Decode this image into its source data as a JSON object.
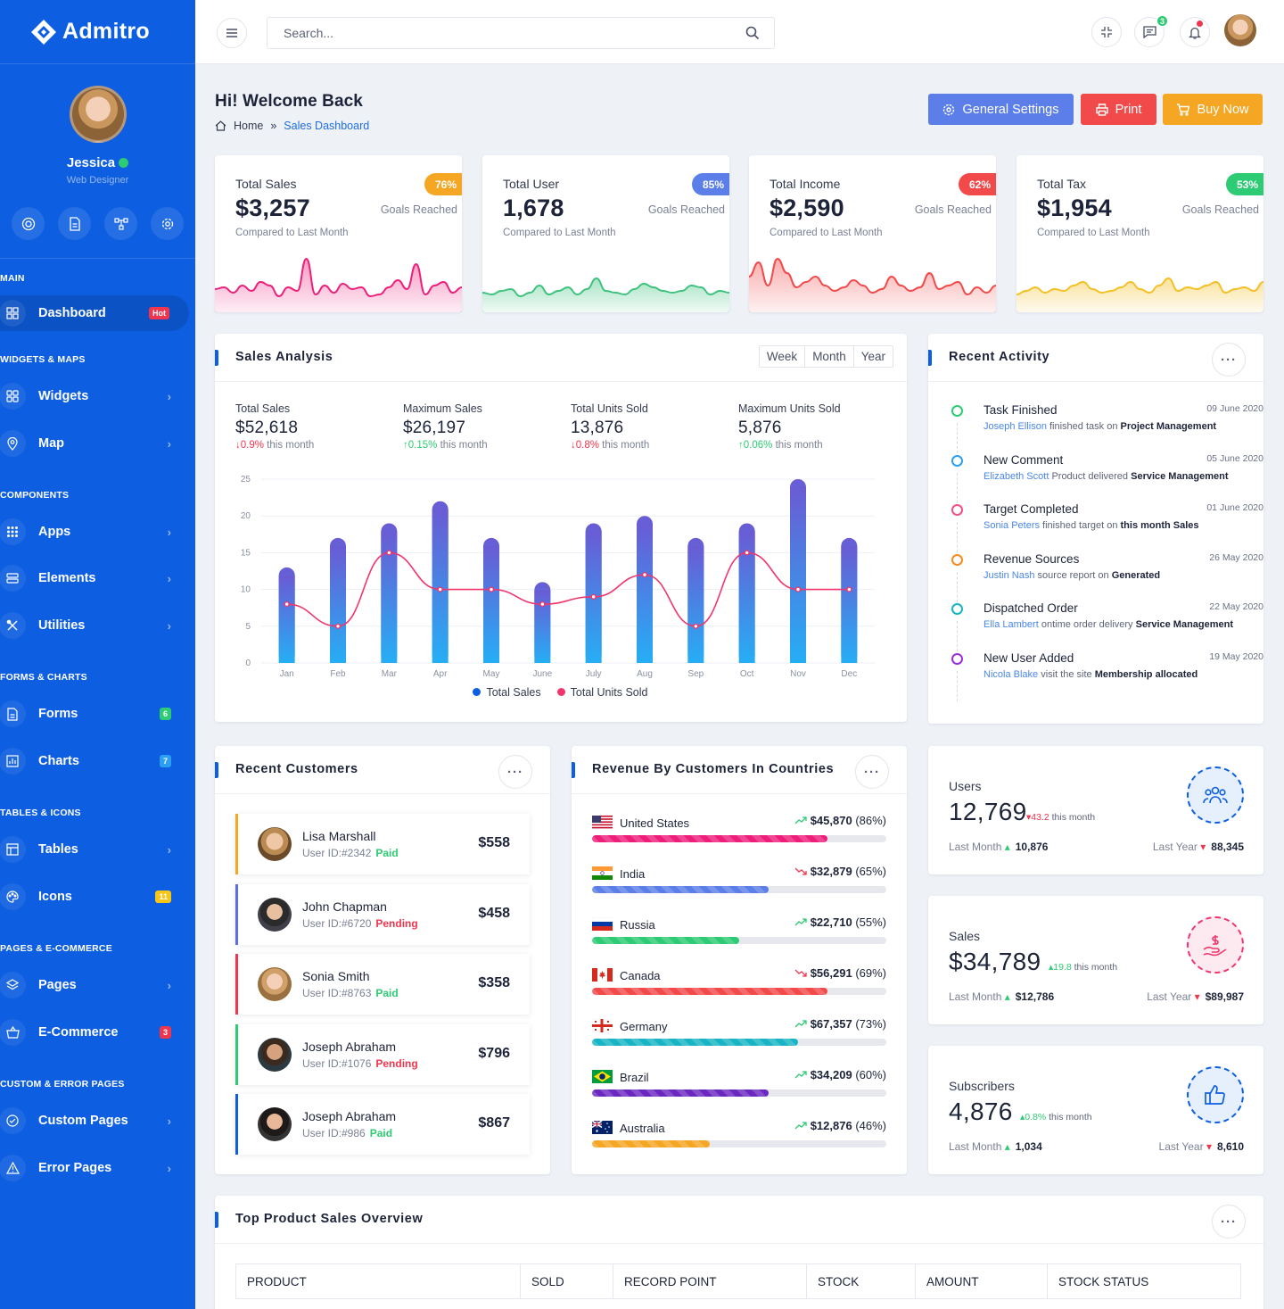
{
  "app": {
    "name": "Admitro"
  },
  "profile": {
    "name": "Jessica",
    "role": "Web Designer"
  },
  "nav": {
    "sec_main": "MAIN",
    "dashboard": "Dashboard",
    "dashboard_badge": "Hot",
    "sec_widgets": "WIDGETS & MAPS",
    "widgets": "Widgets",
    "map": "Map",
    "sec_components": "COMPONENTS",
    "apps": "Apps",
    "elements": "Elements",
    "utilities": "Utilities",
    "sec_forms": "FORMS & CHARTS",
    "forms": "Forms",
    "forms_badge": "6",
    "charts": "Charts",
    "charts_badge": "7",
    "sec_tables": "TABLES & ICONS",
    "tables": "Tables",
    "icons": "Icons",
    "icons_badge": "11",
    "sec_pages": "PAGES & E-COMMERCE",
    "pages": "Pages",
    "ecommerce": "E-Commerce",
    "ecommerce_badge": "3",
    "sec_custom": "CUSTOM & ERROR PAGES",
    "custom": "Custom Pages",
    "error": "Error Pages"
  },
  "topbar": {
    "search_placeholder": "Search...",
    "messages_count": "3"
  },
  "header": {
    "title": "Hi! Welcome Back",
    "crumb_home": "Home",
    "crumb_sep": "»",
    "crumb_current": "Sales Dashboard",
    "btn_settings": "General Settings",
    "btn_print": "Print",
    "btn_buy": "Buy Now"
  },
  "stats": [
    {
      "label": "Total Sales",
      "value": "$3,257",
      "pct": "76%",
      "goal": "Goals Reached",
      "compare": "Compared to Last Month",
      "color": "#ee1f7b"
    },
    {
      "label": "Total User",
      "value": "1,678",
      "pct": "85%",
      "goal": "Goals Reached",
      "compare": "Compared to Last Month",
      "color": "#3ec27e"
    },
    {
      "label": "Total Income",
      "value": "$2,590",
      "pct": "62%",
      "goal": "Goals Reached",
      "compare": "Compared to Last Month",
      "color": "#f24a4a"
    },
    {
      "label": "Total Tax",
      "value": "$1,954",
      "pct": "53%",
      "goal": "Goals Reached",
      "compare": "Compared to Last Month",
      "color": "#f4c026"
    }
  ],
  "sales_analysis": {
    "title": "Sales Analysis",
    "ranges": [
      "Week",
      "Month",
      "Year"
    ],
    "summary": [
      {
        "label": "Total Sales",
        "value": "$52,618",
        "delta": "0.9%",
        "suffix": "this month",
        "dir": "down"
      },
      {
        "label": "Maximum Sales",
        "value": "$26,197",
        "delta": "0.15%",
        "suffix": "this month",
        "dir": "up"
      },
      {
        "label": "Total Units Sold",
        "value": "13,876",
        "delta": "0.8%",
        "suffix": "this month",
        "dir": "down"
      },
      {
        "label": "Maximum Units Sold",
        "value": "5,876",
        "delta": "0.06%",
        "suffix": "this month",
        "dir": "up"
      }
    ],
    "legend_sales": "Total Sales",
    "legend_units": "Total Units Sold"
  },
  "chart_data": {
    "type": "bar",
    "categories": [
      "Jan",
      "Feb",
      "Mar",
      "Apr",
      "May",
      "June",
      "July",
      "Aug",
      "Sep",
      "Oct",
      "Nov",
      "Dec"
    ],
    "series": [
      {
        "name": "Total Sales",
        "type": "bar",
        "values": [
          13,
          17,
          19,
          22,
          17,
          11,
          19,
          20,
          17,
          19,
          25,
          17
        ],
        "color": "#5b6fe0"
      },
      {
        "name": "Total Units Sold",
        "type": "line",
        "values": [
          8,
          5,
          15,
          10,
          10,
          8,
          9,
          12,
          5,
          15,
          10,
          10
        ],
        "color": "#f0366c"
      }
    ],
    "ylim": [
      0,
      25
    ],
    "yticks": [
      0,
      5,
      10,
      15,
      20,
      25
    ],
    "grid": true,
    "legend": "bottom"
  },
  "activity": {
    "title": "Recent Activity",
    "items": [
      {
        "title": "Task Finished",
        "date": "09 June 2020",
        "name": "Joseph Ellison",
        "text": "finished task on",
        "strong": "Project Management",
        "color": "#2dcb73"
      },
      {
        "title": "New Comment",
        "date": "05 June 2020",
        "name": "Elizabeth Scott",
        "text": "Product delivered",
        "strong": "Service Management",
        "color": "#2c9ff0"
      },
      {
        "title": "Target Completed",
        "date": "01 June 2020",
        "name": "Sonia Peters",
        "text": "finished target on",
        "strong": "this month Sales",
        "color": "#f0508a"
      },
      {
        "title": "Revenue Sources",
        "date": "26 May 2020",
        "name": "Justin Nash",
        "text": "source report on",
        "strong": "Generated",
        "color": "#f58a1f"
      },
      {
        "title": "Dispatched Order",
        "date": "22 May 2020",
        "name": "Ella Lambert",
        "text": "ontime order delivery",
        "strong": "Service Management",
        "color": "#16b4c4"
      },
      {
        "title": "New User Added",
        "date": "19 May 2020",
        "name": "Nicola Blake",
        "text": "visit the site",
        "strong": "Membership allocated",
        "color": "#9c2ee0"
      }
    ]
  },
  "customers": {
    "title": "Recent Customers",
    "items": [
      {
        "name": "Lisa Marshall",
        "id": "User ID:#2342",
        "status": "Paid",
        "amount": "$558",
        "color": "#f5a623",
        "status_color": "#2dcb73"
      },
      {
        "name": "John Chapman",
        "id": "User ID:#6720",
        "status": "Pending",
        "amount": "$458",
        "color": "#5b6fe0",
        "status_color": "#f0364e"
      },
      {
        "name": "Sonia Smith",
        "id": "User ID:#8763",
        "status": "Paid",
        "amount": "$358",
        "color": "#f0364e",
        "status_color": "#2dcb73"
      },
      {
        "name": "Joseph Abraham",
        "id": "User ID:#1076",
        "status": "Pending",
        "amount": "$796",
        "color": "#2dcb73",
        "status_color": "#f0364e"
      },
      {
        "name": "Joseph Abraham",
        "id": "User ID:#986",
        "status": "Paid",
        "amount": "$867",
        "color": "#0d5ee0",
        "status_color": "#2dcb73"
      }
    ]
  },
  "countries": {
    "title": "Revenue By Customers In Countries",
    "items": [
      {
        "name": "United States",
        "value": "$45,870",
        "pct": "(86%)",
        "fill": 0.8,
        "color": "#ee1f7b",
        "trend": "up"
      },
      {
        "name": "India",
        "value": "$32,879",
        "pct": "(65%)",
        "fill": 0.6,
        "color": "#5b7ee8",
        "trend": "down"
      },
      {
        "name": "Russia",
        "value": "$22,710",
        "pct": "(55%)",
        "fill": 0.5,
        "color": "#2dcb73",
        "trend": "up"
      },
      {
        "name": "Canada",
        "value": "$56,291",
        "pct": "(69%)",
        "fill": 0.8,
        "color": "#f24a4a",
        "trend": "down"
      },
      {
        "name": "Germany",
        "value": "$67,357",
        "pct": "(73%)",
        "fill": 0.7,
        "color": "#16b4c4",
        "trend": "up"
      },
      {
        "name": "Brazil",
        "value": "$34,209",
        "pct": "(60%)",
        "fill": 0.6,
        "color": "#6a28c0",
        "trend": "up"
      },
      {
        "name": "Australia",
        "value": "$12,876",
        "pct": "(46%)",
        "fill": 0.4,
        "color": "#f5a623",
        "trend": "up"
      }
    ]
  },
  "metrics": [
    {
      "label": "Users",
      "value": "12,769",
      "change": "43.2",
      "change_suffix": "this month",
      "dir": "down",
      "last_month": "10,876",
      "last_year": "88,345",
      "lm_label": "Last Month",
      "ly_label": "Last Year",
      "color": "#0d5ee0"
    },
    {
      "label": "Sales",
      "value": "$34,789",
      "change": "19.8",
      "change_suffix": "this month",
      "dir": "up",
      "last_month": "$12,786",
      "last_year": "$89,987",
      "lm_label": "Last Month",
      "ly_label": "Last Year",
      "color": "#f0366c"
    },
    {
      "label": "Subscribers",
      "value": "4,876",
      "change": "0.8%",
      "change_suffix": "this month",
      "dir": "up",
      "last_month": "1,034",
      "last_year": "8,610",
      "lm_label": "Last Month",
      "ly_label": "Last Year",
      "color": "#0d5ee0"
    }
  ],
  "products": {
    "title": "Top Product Sales Overview",
    "columns": [
      "PRODUCT",
      "SOLD",
      "RECORD POINT",
      "STOCK",
      "AMOUNT",
      "STOCK STATUS"
    ]
  }
}
